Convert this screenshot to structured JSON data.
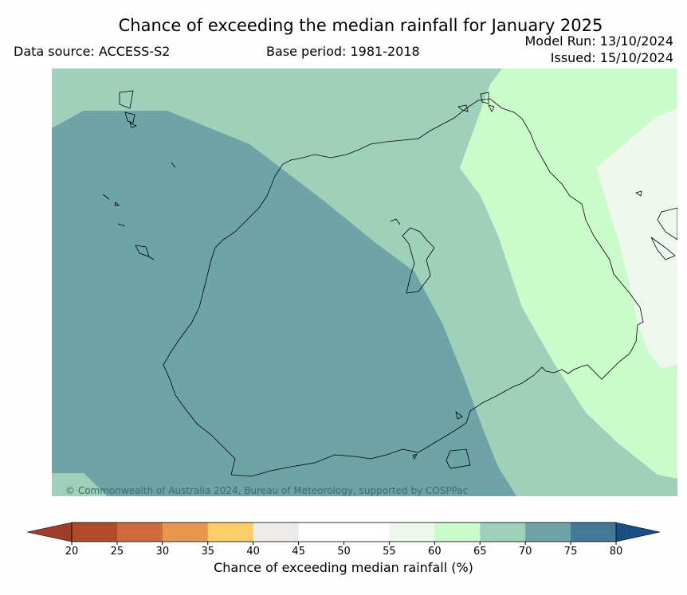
{
  "header": {
    "title": "Chance of exceeding the median rainfall for January 2025",
    "data_source": "Data source: ACCESS-S2",
    "base_period": "Base period: 1981-2018",
    "model_run": "Model Run: 13/10/2024",
    "issued": "Issued: 15/10/2024"
  },
  "map": {
    "copyright": "© Commonwealth of Australia 2024, Bureau of Meteorology, supported by COSPPac",
    "regions": [
      {
        "name": "70-75% zone",
        "color": "#6ea3a8"
      },
      {
        "name": "65-70% zone",
        "color": "#9ed0ba"
      },
      {
        "name": "60-65% zone",
        "color": "#cbfacb"
      },
      {
        "name": "55-60% zone",
        "color": "#eef6ee"
      }
    ]
  },
  "colorbar": {
    "label": "Chance of exceeding median rainfall (%)",
    "ticks": [
      "20",
      "25",
      "30",
      "35",
      "40",
      "45",
      "50",
      "55",
      "60",
      "65",
      "70",
      "75",
      "80"
    ],
    "colors": [
      "#b04a2a",
      "#cf6a3c",
      "#e6964d",
      "#fdcd6a",
      "#eeeaea",
      "#ffffff",
      "#ffffff",
      "#eef6ee",
      "#cbfacb",
      "#9ed0ba",
      "#6ea3a8",
      "#427a95"
    ],
    "under_color": "#9e3d28",
    "over_color": "#1a4d84"
  }
}
